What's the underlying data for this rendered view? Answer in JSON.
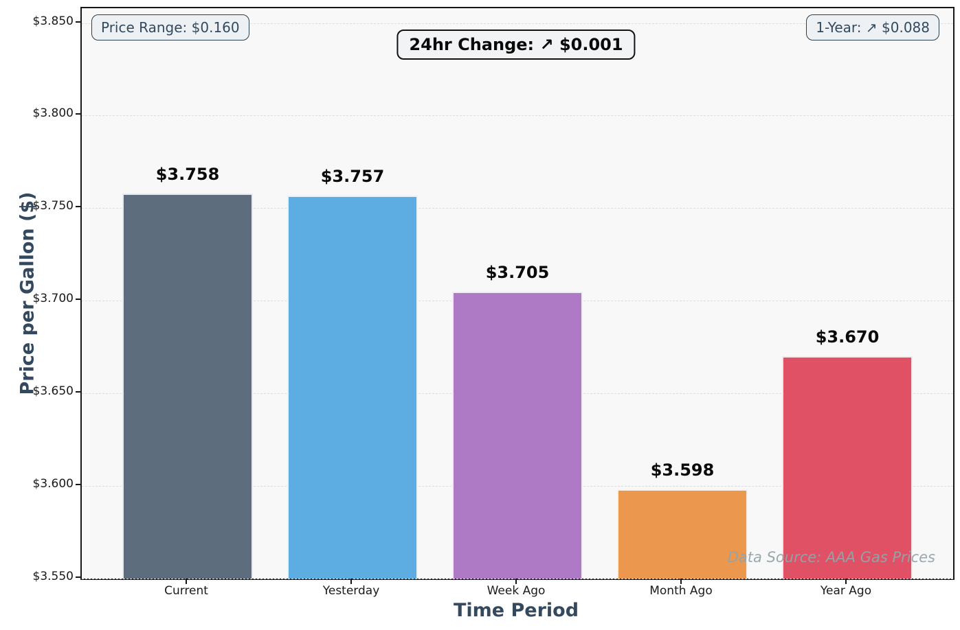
{
  "chart_data": {
    "type": "bar",
    "title": "",
    "categories": [
      "Current",
      "Yesterday",
      "Week Ago",
      "Month Ago",
      "Year Ago"
    ],
    "values": [
      3.758,
      3.757,
      3.705,
      3.598,
      3.67
    ],
    "value_labels": [
      "$3.758",
      "$3.757",
      "$3.705",
      "$3.598",
      "$3.670"
    ],
    "bar_colors": [
      "#5D6D7E",
      "#5DADE2",
      "#AF7AC5",
      "#EB984E",
      "#E05166"
    ],
    "xlabel": "Time Period",
    "ylabel": "Price per Gallon ($)",
    "ylim": [
      3.55,
      3.858
    ],
    "yticks": [
      3.55,
      3.6,
      3.65,
      3.7,
      3.75,
      3.8,
      3.85
    ],
    "ytick_labels": [
      "$3.550",
      "$3.600",
      "$3.650",
      "$3.700",
      "$3.750",
      "$3.800",
      "$3.850"
    ],
    "grid": "horizontal dashed",
    "legend": "none",
    "annotations": {
      "price_range": "Price Range: $0.160",
      "change_24hr": "24hr Change: ↗ $0.001",
      "one_year": "1-Year: ↗ $0.088",
      "watermark": "Data Source: AAA Gas Prices"
    },
    "colors": {
      "plot_background": "#F8F8F8",
      "figure_background": "#FFFFFF",
      "grid_line": "#DCDCDC",
      "axis_spine": "#161616",
      "axis_title_text": "#34495E",
      "tick_label_text": "#1A1A1A",
      "value_label_text": "#0A0A0A",
      "annotation_text": "#34495E",
      "annotation_border": "#2C3E50",
      "change_box_border": "#111111",
      "watermark_text": "#94A3A9"
    }
  }
}
